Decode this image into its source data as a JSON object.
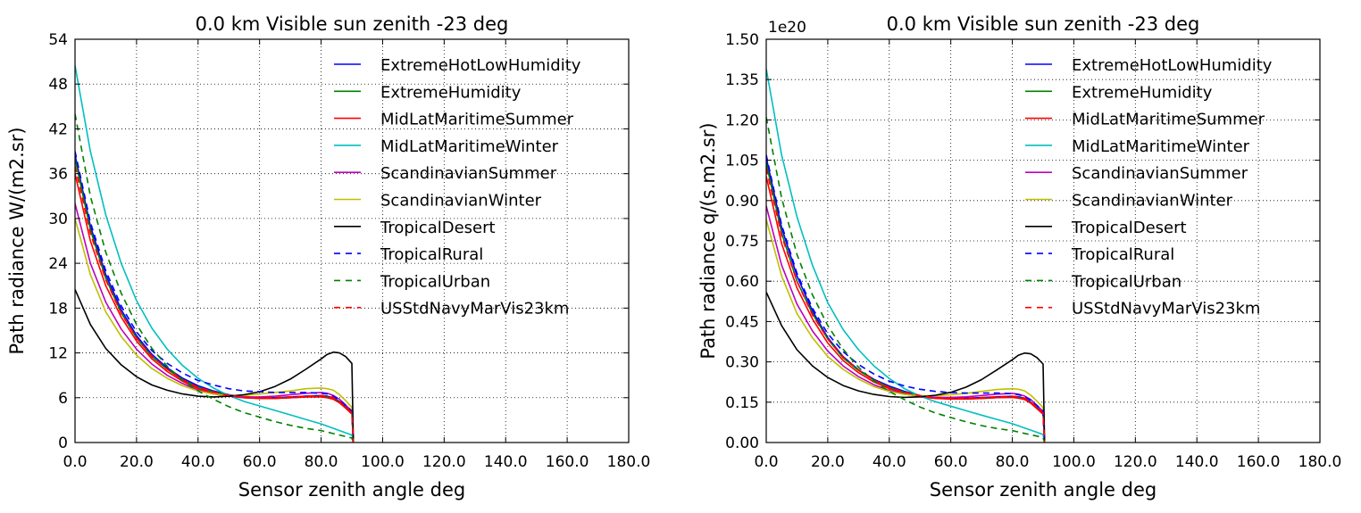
{
  "chart_data": [
    {
      "type": "line",
      "title": "0.0 km Visible sun zenith -23 deg",
      "xlabel": "Sensor zenith angle deg",
      "ylabel": "Path radiance W/(m2.sr)",
      "xlim": [
        0,
        180
      ],
      "ylim": [
        0,
        54
      ],
      "xticks": [
        "0.0",
        "20.0",
        "40.0",
        "60.0",
        "80.0",
        "100.0",
        "120.0",
        "140.0",
        "160.0",
        "180.0"
      ],
      "yticks": [
        "0",
        "6",
        "12",
        "18",
        "24",
        "30",
        "36",
        "42",
        "48",
        "54"
      ],
      "scale_label": "",
      "grid": true,
      "legend_position": "top-right",
      "x": [
        0,
        5,
        10,
        15,
        20,
        25,
        30,
        35,
        40,
        45,
        50,
        55,
        60,
        65,
        70,
        75,
        80,
        82,
        84,
        86,
        88,
        90,
        90.5
      ],
      "series": [
        {
          "name": "ExtremeHotLowHumidity",
          "color": "#0000ff",
          "dash": "solid",
          "values": [
            38.5,
            29,
            22.5,
            17.8,
            14.3,
            11.8,
            10,
            8.6,
            7.6,
            6.9,
            6.4,
            6.1,
            6.0,
            6.0,
            6.1,
            6.2,
            6.3,
            6.2,
            6.0,
            5.5,
            4.8,
            4.0,
            0
          ]
        },
        {
          "name": "ExtremeHumidity",
          "color": "#008000",
          "dash": "solid",
          "values": [
            38,
            28.5,
            22.0,
            17.4,
            14.0,
            11.5,
            9.8,
            8.4,
            7.4,
            6.8,
            6.3,
            6.0,
            5.9,
            5.9,
            6.0,
            6.1,
            6.2,
            6.1,
            5.9,
            5.4,
            4.7,
            3.9,
            0
          ]
        },
        {
          "name": "MidLatMaritimeSummer",
          "color": "#ff0000",
          "dash": "solid",
          "values": [
            36,
            27,
            21,
            16.8,
            13.6,
            11.2,
            9.5,
            8.2,
            7.2,
            6.6,
            6.2,
            6.0,
            5.9,
            5.9,
            6.0,
            6.1,
            6.1,
            6.0,
            5.8,
            5.3,
            4.6,
            3.8,
            0
          ]
        },
        {
          "name": "MidLatMaritimeWinter",
          "color": "#00bfbf",
          "dash": "solid",
          "values": [
            50.5,
            39,
            30.5,
            24,
            19,
            15.3,
            12.5,
            10.3,
            8.6,
            7.3,
            6.3,
            5.5,
            4.9,
            4.3,
            3.7,
            3.1,
            2.5,
            2.2,
            1.9,
            1.6,
            1.3,
            1.0,
            0
          ]
        },
        {
          "name": "ScandinavianSummer",
          "color": "#bf00bf",
          "dash": "solid",
          "values": [
            32,
            24,
            18.8,
            15.2,
            12.5,
            10.5,
            9.0,
            7.9,
            7.0,
            6.5,
            6.2,
            6.1,
            6.1,
            6.2,
            6.4,
            6.6,
            6.7,
            6.6,
            6.3,
            5.8,
            5.0,
            4.2,
            0
          ]
        },
        {
          "name": "ScandinavianWinter",
          "color": "#bfbf00",
          "dash": "solid",
          "values": [
            30,
            22.5,
            17.5,
            14.2,
            11.7,
            9.9,
            8.6,
            7.6,
            6.9,
            6.5,
            6.3,
            6.3,
            6.5,
            6.7,
            6.9,
            7.2,
            7.3,
            7.2,
            7.0,
            6.4,
            5.6,
            4.7,
            0
          ]
        },
        {
          "name": "TropicalDesert",
          "color": "#000000",
          "dash": "solid",
          "values": [
            20.5,
            15.8,
            12.6,
            10.4,
            8.8,
            7.7,
            7.0,
            6.5,
            6.2,
            6.1,
            6.2,
            6.4,
            6.8,
            7.5,
            8.5,
            9.8,
            11.2,
            11.8,
            12.1,
            12.0,
            11.5,
            10.6,
            0
          ]
        },
        {
          "name": "TropicalRural",
          "color": "#0000ff",
          "dash": "dashed",
          "values": [
            39,
            29.5,
            23,
            18.3,
            14.8,
            12.3,
            10.6,
            9.3,
            8.3,
            7.7,
            7.2,
            6.9,
            6.8,
            6.7,
            6.7,
            6.7,
            6.6,
            6.5,
            6.2,
            5.7,
            5.0,
            4.2,
            0
          ]
        },
        {
          "name": "TropicalUrban",
          "color": "#008000",
          "dash": "dashed",
          "values": [
            44,
            33,
            25.5,
            20,
            15.8,
            12.6,
            10.2,
            8.3,
            6.9,
            5.8,
            4.8,
            4.0,
            3.4,
            2.8,
            2.3,
            1.9,
            1.6,
            1.4,
            1.2,
            1.0,
            0.8,
            0.6,
            0
          ]
        },
        {
          "name": "USStdNavyMarVis23km",
          "color": "#ff0000",
          "dash": "dashed",
          "values": [
            37,
            28,
            21.8,
            17.3,
            14.0,
            11.6,
            9.8,
            8.4,
            7.4,
            6.8,
            6.3,
            6.1,
            6.0,
            6.0,
            6.1,
            6.2,
            6.3,
            6.2,
            6.0,
            5.5,
            4.8,
            4.0,
            0
          ]
        }
      ]
    },
    {
      "type": "line",
      "title": "0.0 km Visible sun zenith -23 deg",
      "xlabel": "Sensor zenith angle deg",
      "ylabel": "Path radiance q/(s.m2.sr)",
      "xlim": [
        0,
        180
      ],
      "ylim": [
        0,
        1.5
      ],
      "xticks": [
        "0.0",
        "20.0",
        "40.0",
        "60.0",
        "80.0",
        "100.0",
        "120.0",
        "140.0",
        "160.0",
        "180.0"
      ],
      "yticks": [
        "0.00",
        "0.15",
        "0.30",
        "0.45",
        "0.60",
        "0.75",
        "0.90",
        "1.05",
        "1.20",
        "1.35",
        "1.50"
      ],
      "scale_label": "1e20",
      "grid": true,
      "legend_position": "top-right",
      "x": [
        0,
        5,
        10,
        15,
        20,
        25,
        30,
        35,
        40,
        45,
        50,
        55,
        60,
        65,
        70,
        75,
        80,
        82,
        84,
        86,
        88,
        90,
        90.5
      ],
      "series": [
        {
          "name": "ExtremeHotLowHumidity",
          "color": "#0000ff",
          "dash": "solid",
          "values": [
            1.06,
            0.8,
            0.62,
            0.49,
            0.39,
            0.32,
            0.27,
            0.235,
            0.21,
            0.19,
            0.175,
            0.167,
            0.164,
            0.165,
            0.167,
            0.17,
            0.172,
            0.17,
            0.165,
            0.15,
            0.13,
            0.11,
            0
          ]
        },
        {
          "name": "ExtremeHumidity",
          "color": "#008000",
          "dash": "solid",
          "values": [
            1.04,
            0.78,
            0.6,
            0.48,
            0.385,
            0.315,
            0.268,
            0.232,
            0.205,
            0.187,
            0.173,
            0.165,
            0.162,
            0.162,
            0.164,
            0.167,
            0.169,
            0.167,
            0.162,
            0.148,
            0.128,
            0.107,
            0
          ]
        },
        {
          "name": "MidLatMaritimeSummer",
          "color": "#ff0000",
          "dash": "solid",
          "values": [
            0.99,
            0.74,
            0.575,
            0.46,
            0.37,
            0.305,
            0.26,
            0.225,
            0.2,
            0.182,
            0.17,
            0.164,
            0.162,
            0.162,
            0.164,
            0.167,
            0.168,
            0.165,
            0.16,
            0.146,
            0.126,
            0.105,
            0
          ]
        },
        {
          "name": "MidLatMaritimeWinter",
          "color": "#00bfbf",
          "dash": "solid",
          "values": [
            1.39,
            1.07,
            0.84,
            0.66,
            0.52,
            0.42,
            0.345,
            0.285,
            0.238,
            0.2,
            0.173,
            0.152,
            0.135,
            0.118,
            0.102,
            0.086,
            0.07,
            0.062,
            0.054,
            0.046,
            0.038,
            0.03,
            0
          ]
        },
        {
          "name": "ScandinavianSummer",
          "color": "#bf00bf",
          "dash": "solid",
          "values": [
            0.88,
            0.66,
            0.515,
            0.415,
            0.34,
            0.285,
            0.245,
            0.215,
            0.193,
            0.18,
            0.172,
            0.168,
            0.168,
            0.17,
            0.175,
            0.18,
            0.183,
            0.18,
            0.173,
            0.16,
            0.138,
            0.116,
            0
          ]
        },
        {
          "name": "ScandinavianWinter",
          "color": "#bfbf00",
          "dash": "solid",
          "values": [
            0.83,
            0.62,
            0.48,
            0.39,
            0.32,
            0.272,
            0.236,
            0.208,
            0.19,
            0.179,
            0.174,
            0.174,
            0.178,
            0.183,
            0.19,
            0.197,
            0.2,
            0.198,
            0.192,
            0.176,
            0.154,
            0.13,
            0
          ]
        },
        {
          "name": "TropicalDesert",
          "color": "#000000",
          "dash": "solid",
          "values": [
            0.56,
            0.435,
            0.345,
            0.285,
            0.242,
            0.212,
            0.192,
            0.179,
            0.171,
            0.168,
            0.17,
            0.176,
            0.187,
            0.206,
            0.234,
            0.27,
            0.308,
            0.325,
            0.333,
            0.33,
            0.316,
            0.292,
            0
          ]
        },
        {
          "name": "TropicalRural",
          "color": "#0000ff",
          "dash": "dashed",
          "values": [
            1.07,
            0.81,
            0.63,
            0.5,
            0.405,
            0.338,
            0.29,
            0.255,
            0.228,
            0.21,
            0.198,
            0.19,
            0.186,
            0.184,
            0.184,
            0.184,
            0.182,
            0.178,
            0.171,
            0.157,
            0.138,
            0.116,
            0
          ]
        },
        {
          "name": "TropicalUrban",
          "color": "#008000",
          "dash": "dashed",
          "values": [
            1.21,
            0.91,
            0.7,
            0.55,
            0.435,
            0.347,
            0.28,
            0.228,
            0.19,
            0.159,
            0.132,
            0.11,
            0.093,
            0.077,
            0.063,
            0.052,
            0.044,
            0.039,
            0.034,
            0.029,
            0.024,
            0.018,
            0
          ]
        },
        {
          "name": "USStdNavyMarVis23km",
          "color": "#ff0000",
          "dash": "dashed",
          "values": [
            1.02,
            0.77,
            0.6,
            0.475,
            0.385,
            0.318,
            0.27,
            0.232,
            0.205,
            0.187,
            0.174,
            0.168,
            0.165,
            0.165,
            0.167,
            0.17,
            0.172,
            0.17,
            0.165,
            0.151,
            0.131,
            0.11,
            0
          ]
        }
      ]
    }
  ]
}
